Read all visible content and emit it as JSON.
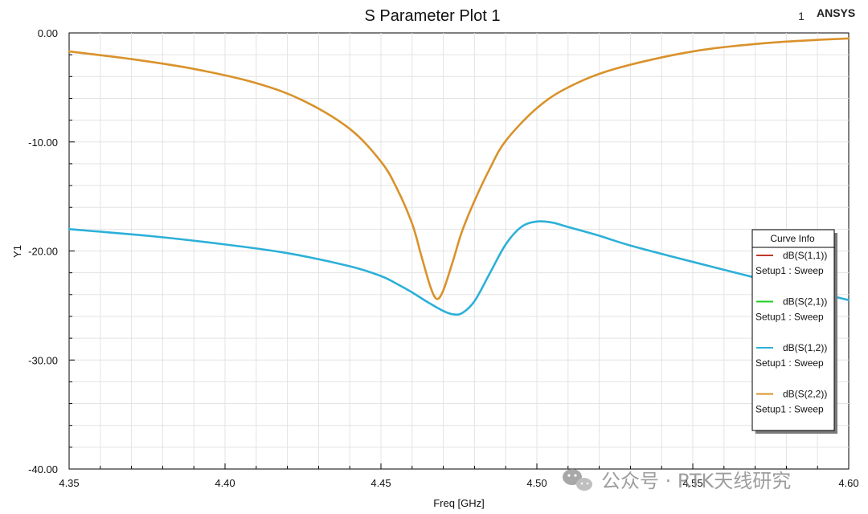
{
  "chart_data": {
    "type": "line",
    "title": "S Parameter Plot 1",
    "xlabel": "Freq [GHz]",
    "ylabel": "Y1",
    "xlim": [
      4.35,
      4.6
    ],
    "ylim": [
      -40,
      0
    ],
    "x_ticks": [
      "4.35",
      "4.40",
      "4.45",
      "4.50",
      "4.55",
      "4.60"
    ],
    "y_ticks": [
      "0.00",
      "-10.00",
      "-20.00",
      "-30.00",
      "-40.00"
    ],
    "grid": true,
    "legend": {
      "title": "Curve Info",
      "position": "right"
    },
    "series": [
      {
        "name": "dB(S(1,1))",
        "sub": "Setup1 : Sweep",
        "color": "#c0392b",
        "x": [],
        "y": []
      },
      {
        "name": "dB(S(2,1))",
        "sub": "Setup1 : Sweep",
        "color": "#22cc22",
        "x": [],
        "y": []
      },
      {
        "name": "dB(S(1,2))",
        "sub": "Setup1 : Sweep",
        "color": "#2cb0d8",
        "x": [
          4.35,
          4.375,
          4.4,
          4.42,
          4.44,
          4.45,
          4.455,
          4.46,
          4.465,
          4.47,
          4.473,
          4.476,
          4.48,
          4.485,
          4.49,
          4.495,
          4.5,
          4.505,
          4.51,
          4.52,
          4.53,
          4.55,
          4.575,
          4.6
        ],
        "y": [
          -18.0,
          -18.6,
          -19.4,
          -20.2,
          -21.4,
          -22.3,
          -23.0,
          -23.8,
          -24.7,
          -25.5,
          -25.8,
          -25.7,
          -24.6,
          -22.0,
          -19.4,
          -17.8,
          -17.3,
          -17.4,
          -17.8,
          -18.6,
          -19.5,
          -21.0,
          -22.8,
          -24.5
        ]
      },
      {
        "name": "dB(S(2,2))",
        "sub": "Setup1 : Sweep",
        "color": "#d9922b",
        "x": [
          4.35,
          4.37,
          4.39,
          4.41,
          4.425,
          4.44,
          4.45,
          4.455,
          4.46,
          4.463,
          4.466,
          4.468,
          4.47,
          4.473,
          4.476,
          4.48,
          4.485,
          4.49,
          4.5,
          4.51,
          4.525,
          4.55,
          4.575,
          4.6
        ],
        "y": [
          -1.7,
          -2.4,
          -3.3,
          -4.6,
          -6.2,
          -8.8,
          -11.8,
          -14.2,
          -17.5,
          -20.5,
          -23.4,
          -24.4,
          -23.6,
          -21.0,
          -18.2,
          -15.4,
          -12.4,
          -9.9,
          -6.9,
          -5.0,
          -3.3,
          -1.7,
          -0.9,
          -0.5
        ]
      }
    ]
  },
  "header": {
    "marker": "1",
    "brand": "ANSYS"
  },
  "watermark": {
    "text": "公众号 · RTK天线研究"
  }
}
